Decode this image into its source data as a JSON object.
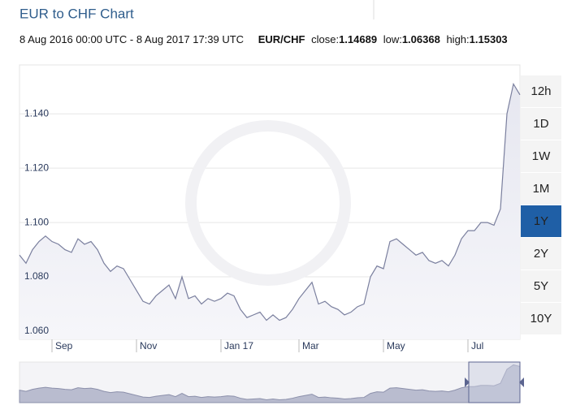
{
  "chart_data": {
    "type": "line",
    "title": "EUR to CHF Chart",
    "subtitle": {
      "range": "8 Aug 2016 00:00 UTC - 8 Aug 2017 17:39 UTC",
      "pair": "EUR/CHF",
      "close_label": "close:",
      "close": 1.14689,
      "low_label": "low:",
      "low": 1.06368,
      "high_label": "high:",
      "high": 1.15303
    },
    "categories": [
      null,
      null,
      null,
      null,
      null,
      "Sep",
      null,
      null,
      null,
      null,
      null,
      null,
      null,
      null,
      null,
      null,
      null,
      null,
      "Nov",
      null,
      null,
      null,
      null,
      null,
      null,
      null,
      null,
      null,
      null,
      null,
      null,
      "Jan 17",
      null,
      null,
      null,
      null,
      null,
      null,
      null,
      null,
      null,
      null,
      null,
      "Mar",
      null,
      null,
      null,
      null,
      null,
      null,
      null,
      null,
      null,
      null,
      null,
      null,
      "May",
      null,
      null,
      null,
      null,
      null,
      null,
      null,
      null,
      null,
      null,
      null,
      null,
      "Jul",
      null,
      null,
      null,
      null,
      null,
      null,
      null,
      null
    ],
    "series": [
      {
        "name": "EUR/CHF",
        "color": "#7a7f9e",
        "values": [
          1.088,
          1.085,
          1.09,
          1.093,
          1.095,
          1.093,
          1.092,
          1.09,
          1.089,
          1.094,
          1.092,
          1.093,
          1.09,
          1.085,
          1.082,
          1.084,
          1.083,
          1.079,
          1.075,
          1.071,
          1.07,
          1.073,
          1.075,
          1.077,
          1.072,
          1.08,
          1.072,
          1.073,
          1.07,
          1.072,
          1.071,
          1.072,
          1.074,
          1.073,
          1.068,
          1.065,
          1.066,
          1.067,
          1.064,
          1.066,
          1.064,
          1.065,
          1.068,
          1.072,
          1.075,
          1.078,
          1.07,
          1.071,
          1.069,
          1.068,
          1.066,
          1.067,
          1.069,
          1.07,
          1.08,
          1.084,
          1.083,
          1.093,
          1.094,
          1.092,
          1.09,
          1.088,
          1.089,
          1.086,
          1.085,
          1.086,
          1.084,
          1.088,
          1.094,
          1.097,
          1.097,
          1.1,
          1.1,
          1.099,
          1.105,
          1.14,
          1.151,
          1.147
        ]
      }
    ],
    "ylim": [
      1.057,
      1.158
    ],
    "yticks": [
      {
        "value": 1.06,
        "label": "1.060"
      },
      {
        "value": 1.08,
        "label": "1.080"
      },
      {
        "value": 1.1,
        "label": "1.100"
      },
      {
        "value": 1.12,
        "label": "1.120"
      },
      {
        "value": 1.14,
        "label": "1.140"
      }
    ],
    "grid": true,
    "buttons": [
      {
        "label": "12h"
      },
      {
        "label": "1D"
      },
      {
        "label": "1W"
      },
      {
        "label": "1M"
      },
      {
        "label": "1Y",
        "active": true
      },
      {
        "label": "2Y"
      },
      {
        "label": "5Y"
      },
      {
        "label": "10Y"
      }
    ]
  }
}
